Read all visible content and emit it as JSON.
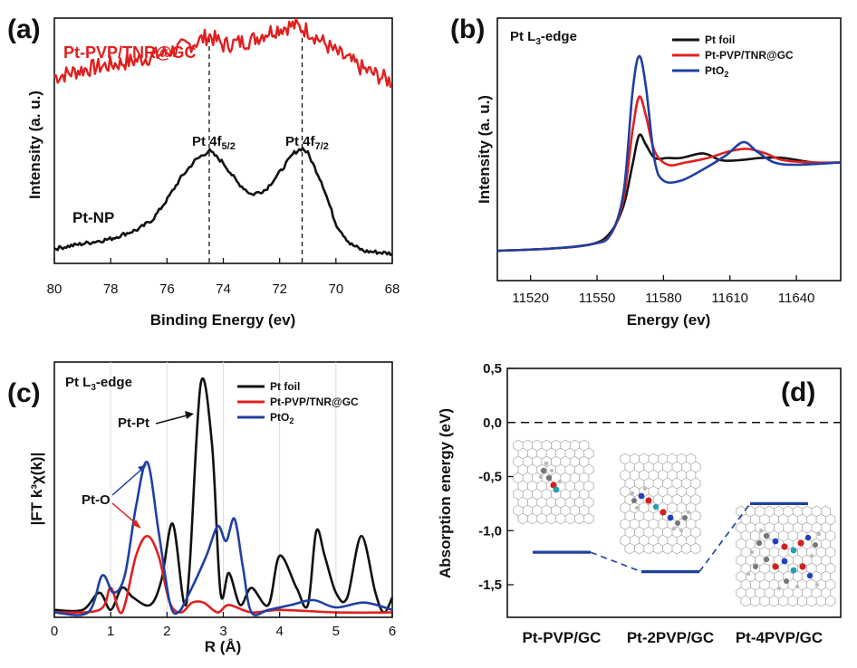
{
  "chart_data": [
    {
      "panel": "(a)",
      "type": "line",
      "xlabel": "Binding Energy (ev)",
      "ylabel": "Intensity (a. u.)",
      "xlim": [
        80,
        68
      ],
      "x_ticks": [
        "80",
        "78",
        "76",
        "74",
        "72",
        "70",
        "68"
      ],
      "series": [
        {
          "name": "Pt-PVP/TNR@GC",
          "color": "#e02020",
          "x": [
            80,
            79,
            78,
            77,
            76,
            75,
            74.5,
            74,
            73,
            72.5,
            72,
            71.5,
            71,
            70,
            69,
            68
          ],
          "y": [
            0.76,
            0.79,
            0.81,
            0.83,
            0.86,
            0.9,
            0.93,
            0.89,
            0.91,
            0.94,
            0.96,
            0.97,
            0.95,
            0.86,
            0.79,
            0.74
          ]
        },
        {
          "name": "Pt-NP",
          "color": "#111111",
          "x": [
            80,
            79,
            78,
            77,
            76.5,
            76,
            75.5,
            75,
            74.5,
            74,
            73.5,
            73,
            72.5,
            72,
            71.5,
            71.2,
            71,
            70.5,
            70,
            69.5,
            69,
            68
          ],
          "y": [
            0.06,
            0.08,
            0.1,
            0.14,
            0.18,
            0.26,
            0.35,
            0.42,
            0.46,
            0.41,
            0.33,
            0.28,
            0.3,
            0.37,
            0.45,
            0.47,
            0.45,
            0.33,
            0.16,
            0.08,
            0.05,
            0.04
          ]
        }
      ],
      "annotations": [
        {
          "base": "Pt 4f",
          "sub": "5/2",
          "x": 74.5
        },
        {
          "base": "Pt 4f",
          "sub": "7/2",
          "x": 71.2
        }
      ],
      "labels": [
        "Pt-PVP/TNR@GC",
        "Pt-NP"
      ]
    },
    {
      "panel": "(b)",
      "type": "line",
      "title_base": "Pt L",
      "title_sub": "3",
      "title_rest": "-edge",
      "xlabel": "Energy (ev)",
      "ylabel": "Intensity (a. u.)",
      "xlim": [
        11505,
        11660
      ],
      "x_ticks": [
        11520,
        11550,
        11580,
        11610,
        11640
      ],
      "legend": "top-right",
      "series": [
        {
          "name": "Pt foil",
          "color": "#111111",
          "x": [
            11505,
            11530,
            11548,
            11556,
            11562,
            11566,
            11569,
            11572,
            11576,
            11582,
            11588,
            11598,
            11606,
            11614,
            11624,
            11634,
            11648,
            11660
          ],
          "y": [
            0.02,
            0.03,
            0.05,
            0.1,
            0.22,
            0.4,
            0.53,
            0.49,
            0.43,
            0.43,
            0.43,
            0.45,
            0.42,
            0.42,
            0.43,
            0.43,
            0.41,
            0.41
          ]
        },
        {
          "name": "Pt-PVP/TNR@GC",
          "color": "#e02020",
          "x": [
            11505,
            11530,
            11548,
            11556,
            11562,
            11566,
            11569,
            11572,
            11576,
            11582,
            11590,
            11600,
            11610,
            11618,
            11626,
            11634,
            11648,
            11660
          ],
          "y": [
            0.02,
            0.03,
            0.05,
            0.09,
            0.25,
            0.55,
            0.7,
            0.62,
            0.46,
            0.4,
            0.41,
            0.43,
            0.46,
            0.47,
            0.45,
            0.42,
            0.41,
            0.41
          ]
        },
        {
          "name": "PtO2",
          "legend_base": "PtO",
          "legend_sub": "2",
          "color": "#2040a0",
          "x": [
            11505,
            11530,
            11548,
            11556,
            11562,
            11566,
            11569,
            11572,
            11576,
            11580,
            11588,
            11598,
            11608,
            11616,
            11622,
            11630,
            11640,
            11660
          ],
          "y": [
            0.02,
            0.03,
            0.05,
            0.09,
            0.28,
            0.72,
            0.88,
            0.75,
            0.42,
            0.33,
            0.33,
            0.38,
            0.44,
            0.5,
            0.46,
            0.41,
            0.4,
            0.41
          ]
        }
      ]
    },
    {
      "panel": "(c)",
      "type": "line",
      "title_base": "Pt L",
      "title_sub": "3",
      "title_rest": "-edge",
      "xlabel": "R (Å)",
      "ylabel": "|FT k³χ(k)|",
      "xlim": [
        0,
        6
      ],
      "x_ticks": [
        0,
        1,
        2,
        3,
        4,
        5,
        6
      ],
      "legend": "top-right",
      "series": [
        {
          "name": "Pt foil",
          "color": "#111111",
          "x": [
            0,
            0.5,
            0.8,
            1.0,
            1.2,
            1.4,
            1.7,
            1.9,
            2.1,
            2.3,
            2.4,
            2.6,
            2.8,
            2.95,
            3.1,
            3.3,
            3.5,
            3.8,
            4.0,
            4.3,
            4.5,
            4.65,
            4.8,
            5.0,
            5.2,
            5.45,
            5.7,
            5.85,
            6.0
          ],
          "y": [
            0.03,
            0.03,
            0.1,
            0.03,
            0.12,
            0.08,
            0.05,
            0.15,
            0.38,
            0.06,
            0.2,
            0.95,
            0.7,
            0.1,
            0.18,
            0.05,
            0.12,
            0.05,
            0.25,
            0.12,
            0.05,
            0.35,
            0.25,
            0.1,
            0.08,
            0.33,
            0.1,
            0.02,
            0.08
          ]
        },
        {
          "name": "Pt-PVP/TNR@GC",
          "color": "#e02020",
          "x": [
            0,
            0.8,
            1.0,
            1.2,
            1.45,
            1.65,
            1.85,
            2.05,
            2.25,
            2.45,
            2.65,
            2.9,
            3.1,
            3.5,
            4.0,
            5.0,
            6.0
          ],
          "y": [
            0.02,
            0.03,
            0.12,
            0.02,
            0.25,
            0.33,
            0.25,
            0.06,
            0.02,
            0.06,
            0.06,
            0.02,
            0.05,
            0.02,
            0.03,
            0.02,
            0.02
          ]
        },
        {
          "name": "PtO2",
          "legend_base": "PtO",
          "legend_sub": "2",
          "color": "#2040a0",
          "x": [
            0,
            0.6,
            0.85,
            1.05,
            1.25,
            1.45,
            1.65,
            1.85,
            2.05,
            2.2,
            2.4,
            2.7,
            2.9,
            3.05,
            3.2,
            3.35,
            3.5,
            3.8,
            4.2,
            4.6,
            5.0,
            5.5,
            6.0
          ],
          "y": [
            0.02,
            0.02,
            0.17,
            0.1,
            0.17,
            0.45,
            0.63,
            0.35,
            0.06,
            0.02,
            0.1,
            0.25,
            0.37,
            0.31,
            0.4,
            0.2,
            0.02,
            0.03,
            0.05,
            0.07,
            0.04,
            0.06,
            0.03
          ]
        }
      ],
      "annotations": [
        {
          "label": "Pt-Pt",
          "target_x": 2.62
        },
        {
          "label": "Pt-O",
          "target_x": 1.65
        }
      ]
    },
    {
      "panel": "(d)",
      "type": "bar",
      "ylabel": "Absorption energy (eV)",
      "ylim": [
        -1.75,
        0.5
      ],
      "y_ticks": [
        "0,5",
        "0,0",
        "-0,5",
        "-1,0",
        "-1,5"
      ],
      "y_tick_values": [
        0.5,
        0.0,
        -0.5,
        -1.0,
        -1.5
      ],
      "reference_line": 0.0,
      "categories": [
        "Pt-PVP/GC",
        "Pt-2PVP/GC",
        "Pt-4PVP/GC"
      ],
      "values": [
        -1.2,
        -1.38,
        -0.75
      ],
      "color": "#2040a0"
    }
  ]
}
